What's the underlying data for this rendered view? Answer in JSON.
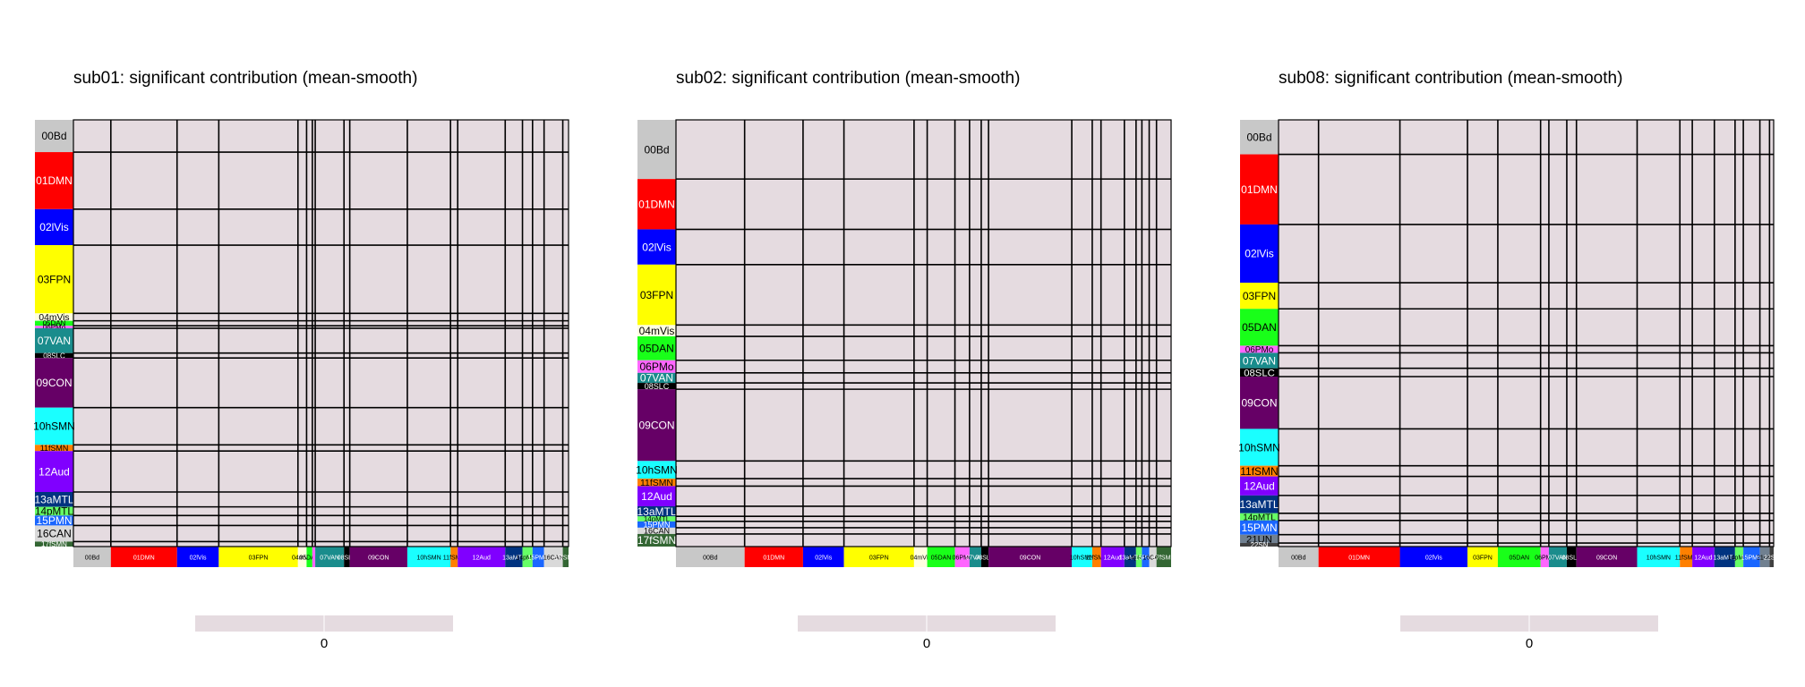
{
  "chart_data": [
    {
      "type": "heatmap",
      "title": "sub01: significant contribution (mean-smooth)",
      "value_all_cells": 0,
      "colorbar": {
        "ticks": [
          "0"
        ],
        "color": "#e5dbe0"
      },
      "networks": [
        {
          "name": "00Bd",
          "size": 26,
          "color": "#c8c8c8"
        },
        {
          "name": "01DMN",
          "size": 46,
          "color": "#ff0000"
        },
        {
          "name": "02lVis",
          "size": 29,
          "color": "#0000ff"
        },
        {
          "name": "03FPN",
          "size": 55,
          "color": "#ffff00"
        },
        {
          "name": "04mVis",
          "size": 6,
          "color": "#ffffe0"
        },
        {
          "name": "05DAN",
          "size": 4,
          "color": "#19ff19"
        },
        {
          "name": "06PMo",
          "size": 2,
          "color": "#ff66ff"
        },
        {
          "name": "07VAN",
          "size": 20,
          "color": "#1a8c8c"
        },
        {
          "name": "08SLC",
          "size": 4,
          "color": "#000000"
        },
        {
          "name": "09CON",
          "size": 40,
          "color": "#660066"
        },
        {
          "name": "10hSMN",
          "size": 30,
          "color": "#1affff"
        },
        {
          "name": "11fSMN",
          "size": 5,
          "color": "#ff8000"
        },
        {
          "name": "12Aud",
          "size": 33,
          "color": "#8000ff"
        },
        {
          "name": "13aMTL",
          "size": 12,
          "color": "#003380"
        },
        {
          "name": "14pMTL",
          "size": 7,
          "color": "#66ff66"
        },
        {
          "name": "15PMN",
          "size": 8,
          "color": "#1a66ff"
        },
        {
          "name": "16CAN",
          "size": 13,
          "color": "#d9d9d9"
        },
        {
          "name": "17fSMN",
          "size": 4,
          "color": "#336633"
        }
      ]
    },
    {
      "type": "heatmap",
      "title": "sub02: significant contribution (mean-smooth)",
      "value_all_cells": 0,
      "colorbar": {
        "ticks": [
          "0"
        ],
        "color": "#e5dbe0"
      },
      "networks": [
        {
          "name": "00Bd",
          "size": 47,
          "color": "#c8c8c8"
        },
        {
          "name": "01DMN",
          "size": 40,
          "color": "#ff0000"
        },
        {
          "name": "02lVis",
          "size": 28,
          "color": "#0000ff"
        },
        {
          "name": "03FPN",
          "size": 48,
          "color": "#ffff00"
        },
        {
          "name": "04mVis",
          "size": 9,
          "color": "#ffffe0"
        },
        {
          "name": "05DAN",
          "size": 19,
          "color": "#19ff19"
        },
        {
          "name": "06PMo",
          "size": 10,
          "color": "#ff66ff"
        },
        {
          "name": "07VAN",
          "size": 8,
          "color": "#1a8c8c"
        },
        {
          "name": "08SLC",
          "size": 5,
          "color": "#000000"
        },
        {
          "name": "09CON",
          "size": 57,
          "color": "#660066"
        },
        {
          "name": "10hSMN",
          "size": 14,
          "color": "#1affff"
        },
        {
          "name": "11fSMN",
          "size": 6,
          "color": "#ff8000"
        },
        {
          "name": "12Aud",
          "size": 16,
          "color": "#8000ff"
        },
        {
          "name": "13aMTL",
          "size": 8,
          "color": "#003380"
        },
        {
          "name": "14pMTL",
          "size": 4,
          "color": "#66ff66"
        },
        {
          "name": "15PMN",
          "size": 5,
          "color": "#1a66ff"
        },
        {
          "name": "16CAN",
          "size": 5,
          "color": "#d9d9d9"
        },
        {
          "name": "17fSMN",
          "size": 10,
          "color": "#336633"
        }
      ]
    },
    {
      "type": "heatmap",
      "title": "sub08: significant contribution (mean-smooth)",
      "value_all_cells": 0,
      "colorbar": {
        "ticks": [
          "0"
        ],
        "color": "#e5dbe0"
      },
      "networks": [
        {
          "name": "00Bd",
          "size": 29,
          "color": "#c8c8c8"
        },
        {
          "name": "01DMN",
          "size": 59,
          "color": "#ff0000"
        },
        {
          "name": "02lVis",
          "size": 49,
          "color": "#0000ff"
        },
        {
          "name": "03FPN",
          "size": 22,
          "color": "#ffff00"
        },
        {
          "name": "05DAN",
          "size": 31,
          "color": "#19ff19"
        },
        {
          "name": "06PMo",
          "size": 6,
          "color": "#ff66ff"
        },
        {
          "name": "07VAN",
          "size": 13,
          "color": "#1a8c8c"
        },
        {
          "name": "08SLC",
          "size": 7,
          "color": "#000000"
        },
        {
          "name": "09CON",
          "size": 44,
          "color": "#660066"
        },
        {
          "name": "10hSMN",
          "size": 31,
          "color": "#1affff"
        },
        {
          "name": "11fSMN",
          "size": 9,
          "color": "#ff8000"
        },
        {
          "name": "12Aud",
          "size": 16,
          "color": "#8000ff"
        },
        {
          "name": "13aMTL",
          "size": 15,
          "color": "#003380"
        },
        {
          "name": "14pMTL",
          "size": 6,
          "color": "#66ff66"
        },
        {
          "name": "15PMN",
          "size": 12,
          "color": "#1a66ff"
        },
        {
          "name": "21UN",
          "size": 7,
          "color": "#708090"
        },
        {
          "name": "22SN",
          "size": 3,
          "color": "#404040"
        }
      ]
    }
  ]
}
